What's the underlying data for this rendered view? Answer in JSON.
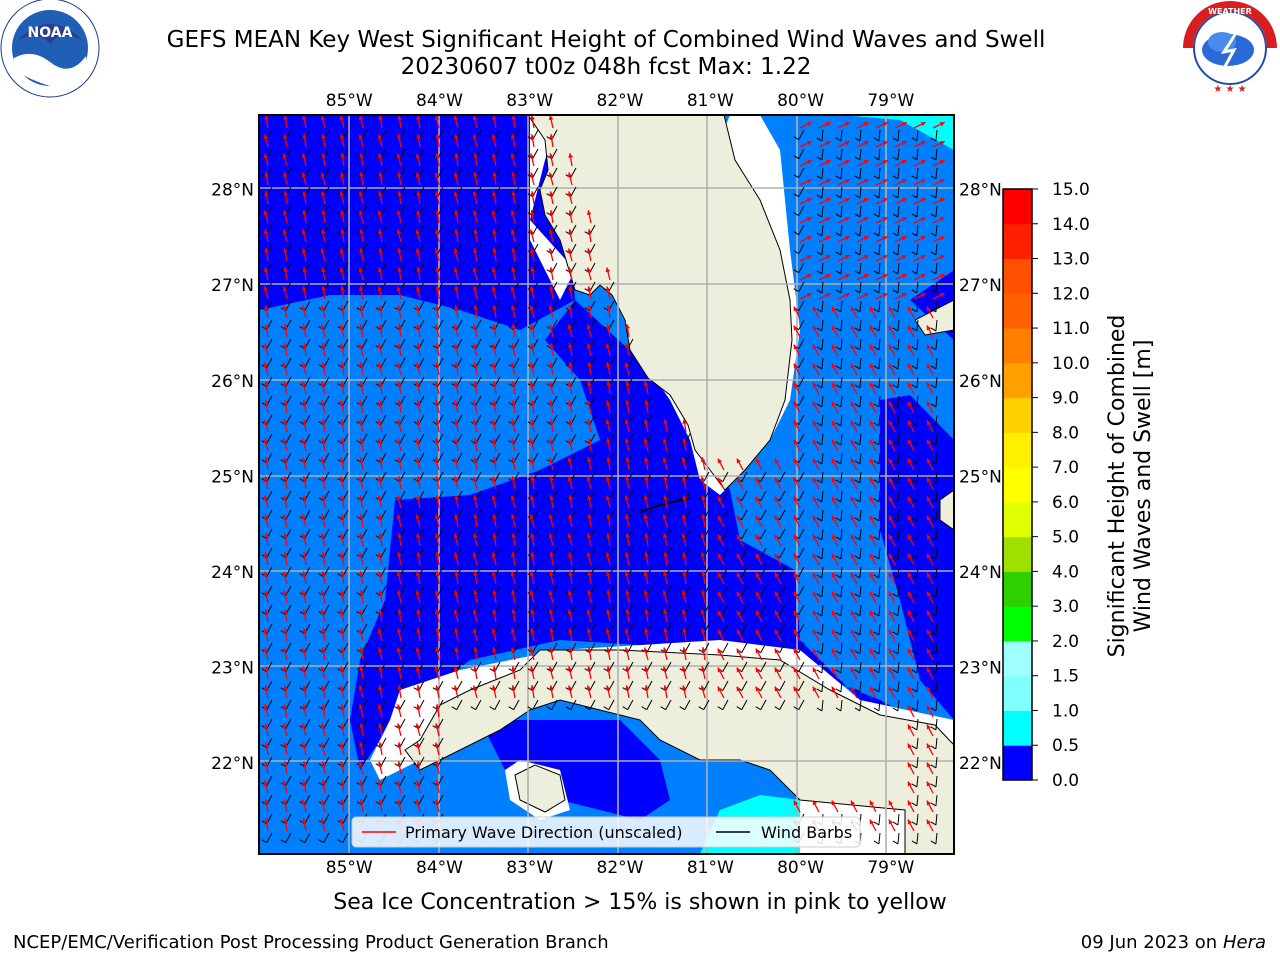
{
  "title_line1": "GEFS MEAN Key West Significant Height of Combined Wind Waves and Swell",
  "title_line2": "20230607 t00z 048h fcst   Max: 1.22",
  "footnote": "Sea Ice Concentration > 15% is shown in pink to yellow",
  "credit_left": "NCEP/EMC/Verification Post Processing Product Generation Branch",
  "credit_date": "09 Jun 2023 on",
  "credit_host": "Hera",
  "logos": {
    "left": "NOAA",
    "left_ring": "NATIONAL OCEANIC AND ATMOSPHERIC ADMINISTRATION · U.S. DEPARTMENT OF COMMERCE",
    "right_ring": "NATIONAL WEATHER SERVICE"
  },
  "colors": {
    "ocean_low": "#0000ff",
    "ocean_mid": "#0080ff",
    "cyan": "#00ffff",
    "land": "#eeeedc",
    "grid": "#b0b0b0",
    "arrow": "#ff0000"
  },
  "chart_data": {
    "type": "heatmap",
    "x_ticks": [
      "85°W",
      "84°W",
      "83°W",
      "82°W",
      "81°W",
      "80°W",
      "79°W"
    ],
    "x_values": [
      -85,
      -84,
      -83,
      -82,
      -81,
      -80,
      -79
    ],
    "y_ticks": [
      "28°N",
      "27°N",
      "26°N",
      "25°N",
      "24°N",
      "23°N",
      "22°N"
    ],
    "y_values": [
      28,
      27,
      26,
      25,
      24,
      23,
      22
    ],
    "xlim": [
      -86,
      -78.3
    ],
    "ylim": [
      21.05,
      28.78
    ],
    "grid": true,
    "colorbar": {
      "label_line1": "Significant Height of Combined",
      "label_line2": "Wind Waves and Swell [m]",
      "ticks": [
        "15.0",
        "14.0",
        "13.0",
        "12.0",
        "11.0",
        "10.0",
        "9.0",
        "8.0",
        "7.0",
        "6.0",
        "5.0",
        "4.0",
        "3.0",
        "2.0",
        "1.5",
        "1.0",
        "0.5",
        "0.0"
      ],
      "levels": [
        0,
        0.5,
        1.0,
        1.5,
        2.0,
        2.5,
        3.0,
        3.5,
        4.0,
        4.5,
        5.0,
        5.5,
        6.0,
        6.5,
        7.0,
        7.5,
        8.0,
        8.5,
        9.0,
        9.5,
        10.0,
        10.5,
        11.0,
        11.5,
        12.0,
        12.5,
        13.0,
        13.5,
        14.0,
        14.5,
        15.0
      ],
      "colors": [
        "#0000ff",
        "#0080ff",
        "#00ffff",
        "#40ffff",
        "#80ffff",
        "#a0ffff",
        "#50ff80",
        "#00ff00",
        "#00e000",
        "#30d000",
        "#60f000",
        "#a0e000",
        "#c8ff00",
        "#e0ff00",
        "#f0ff00",
        "#ffff00",
        "#fff000",
        "#ffe000",
        "#ffd000",
        "#ffb000",
        "#ffa000",
        "#ff9000",
        "#ff8000",
        "#ff7000",
        "#ff6000",
        "#ff5000",
        "#ff3000",
        "#ff2000",
        "#ff1000",
        "#ff0000"
      ]
    },
    "legend": {
      "placement": "lower-center",
      "entries": [
        {
          "label": "Primary Wave Direction (unscaled)",
          "color": "#ff0000"
        },
        {
          "label": "Wind Barbs",
          "color": "#000000"
        }
      ]
    },
    "max_value": 1.22
  }
}
